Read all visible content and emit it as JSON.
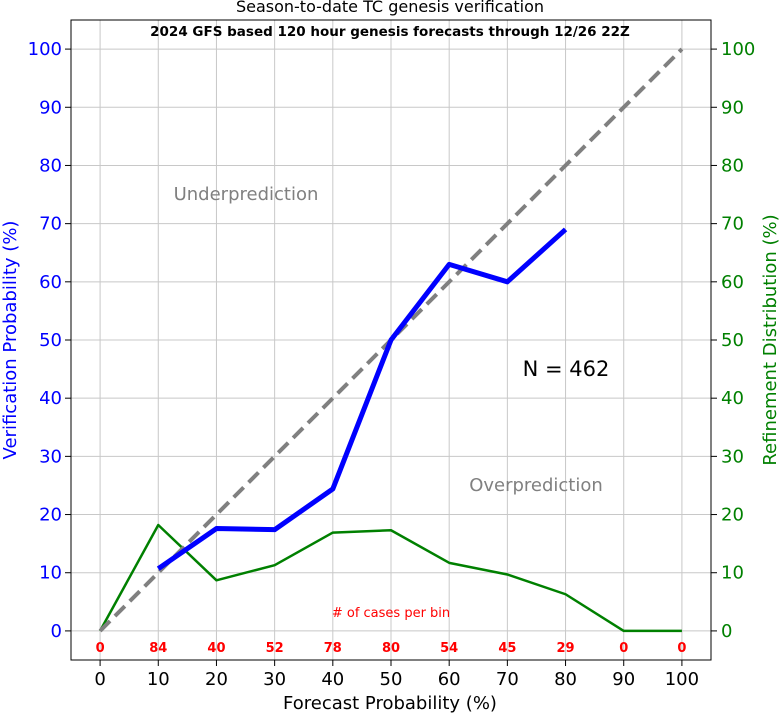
{
  "chart_data": {
    "type": "line",
    "title": "Season-to-date TC genesis verification",
    "subtitle": "2024 GFS based 120 hour genesis forecasts through 12/26 22Z",
    "xlabel": "Forecast Probability (%)",
    "ylabel_left": "Verification Probability (%)",
    "ylabel_right": "Refinement Distribution (%)",
    "xlim": [
      -5,
      105
    ],
    "ylim": [
      -5,
      105
    ],
    "xticks": [
      0,
      10,
      20,
      30,
      40,
      50,
      60,
      70,
      80,
      90,
      100
    ],
    "yticks": [
      0,
      10,
      20,
      30,
      40,
      50,
      60,
      70,
      80,
      90,
      100
    ],
    "grid": true,
    "annotations": {
      "underprediction": "Underprediction",
      "overprediction": "Overprediction",
      "n_label": "N = 462",
      "cases_label": "# of cases per bin"
    },
    "case_counts": {
      "x": [
        0,
        10,
        20,
        30,
        40,
        50,
        60,
        70,
        80,
        90,
        100
      ],
      "labels": [
        "0",
        "84",
        "40",
        "52",
        "78",
        "80",
        "54",
        "45",
        "29",
        "0",
        "0"
      ]
    },
    "series": [
      {
        "key": "perfect",
        "x": [
          0,
          100
        ],
        "y": [
          0,
          100
        ],
        "color": "#808080",
        "dashed": true
      },
      {
        "key": "verification",
        "x": [
          10,
          20,
          30,
          40,
          50,
          60,
          70,
          80
        ],
        "y": [
          10.7,
          17.6,
          17.4,
          24.4,
          50.0,
          63.0,
          60.0,
          69.0
        ],
        "color": "#0000ff"
      },
      {
        "key": "refinement",
        "x": [
          0,
          10,
          20,
          30,
          40,
          50,
          60,
          70,
          80,
          90,
          100
        ],
        "y": [
          0,
          18.2,
          8.7,
          11.3,
          16.9,
          17.3,
          11.7,
          9.7,
          6.3,
          0,
          0
        ],
        "color": "#008000"
      }
    ]
  }
}
